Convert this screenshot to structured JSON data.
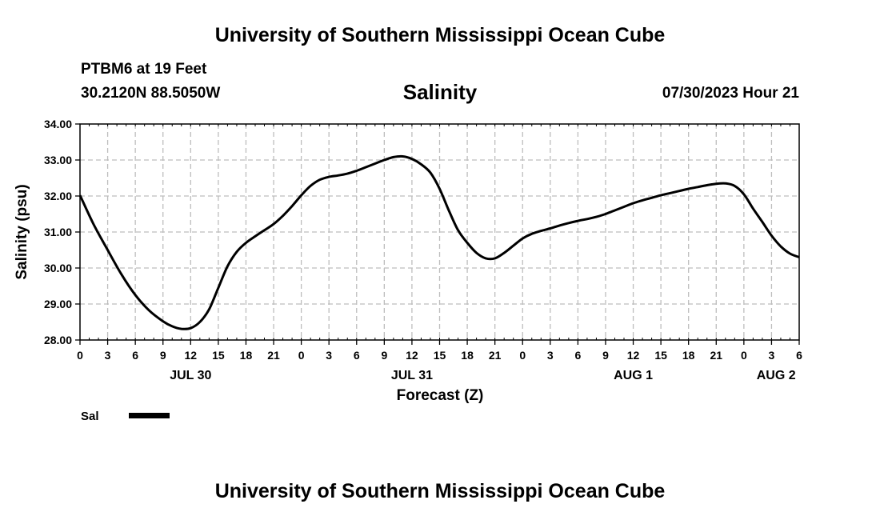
{
  "page": {
    "top_title": "University of Southern Mississippi Ocean Cube",
    "bottom_title": "University of Southern Mississippi Ocean Cube",
    "station": "PTBM6 at 19 Feet",
    "coordinates": "30.2120N  88.5050W",
    "date_hour": "07/30/2023 Hour 21"
  },
  "chart_data": {
    "type": "line",
    "title": "Salinity",
    "xlabel": "Forecast (Z)",
    "ylabel": "Salinity (psu)",
    "ylim": [
      28,
      34
    ],
    "xlim": [
      0,
      78
    ],
    "x_unit": "hours from JUL 30 00Z",
    "y_ticks": [
      "28.00",
      "29.00",
      "30.00",
      "31.00",
      "32.00",
      "33.00",
      "34.00"
    ],
    "x_ticks": [
      "0",
      "3",
      "6",
      "9",
      "12",
      "15",
      "18",
      "21",
      "0",
      "3",
      "6",
      "9",
      "12",
      "15",
      "18",
      "21",
      "0",
      "3",
      "6",
      "9",
      "12",
      "15",
      "18",
      "21",
      "0",
      "3",
      "6"
    ],
    "date_labels": [
      {
        "hour": 12,
        "label": "JUL 30"
      },
      {
        "hour": 36,
        "label": "JUL 31"
      },
      {
        "hour": 60,
        "label": "AUG 1"
      },
      {
        "hour": 75.5,
        "label": "AUG 2"
      }
    ],
    "grid": true,
    "legend": [
      {
        "name": "Sal",
        "color": "#000000"
      }
    ],
    "series": [
      {
        "name": "Sal",
        "color": "#000000",
        "x": [
          0,
          1.5,
          3,
          4.5,
          6,
          7.5,
          9,
          10,
          11,
          12,
          13,
          14,
          15,
          16,
          17,
          18,
          19,
          20,
          21,
          22,
          23,
          24,
          25,
          26,
          27,
          28,
          29,
          30,
          31,
          32,
          33,
          34,
          35,
          36,
          37,
          38,
          39,
          40,
          41,
          42,
          43,
          44,
          45,
          46,
          47,
          48,
          49,
          50,
          51,
          52,
          53,
          54,
          55,
          56,
          57,
          58,
          59,
          60,
          61,
          62,
          63,
          64,
          65,
          66,
          67,
          68,
          69,
          70,
          71,
          72,
          73,
          74,
          75,
          76,
          77,
          78
        ],
        "values": [
          32.02,
          31.2,
          30.5,
          29.82,
          29.25,
          28.82,
          28.52,
          28.38,
          28.31,
          28.33,
          28.5,
          28.85,
          29.45,
          30.05,
          30.45,
          30.7,
          30.88,
          31.05,
          31.22,
          31.45,
          31.72,
          32.02,
          32.28,
          32.45,
          32.53,
          32.57,
          32.62,
          32.7,
          32.8,
          32.9,
          33.0,
          33.08,
          33.1,
          33.03,
          32.88,
          32.65,
          32.2,
          31.6,
          31.05,
          30.7,
          30.42,
          30.27,
          30.27,
          30.42,
          30.62,
          30.82,
          30.95,
          31.03,
          31.1,
          31.18,
          31.25,
          31.31,
          31.36,
          31.42,
          31.5,
          31.6,
          31.7,
          31.8,
          31.88,
          31.95,
          32.02,
          32.08,
          32.14,
          32.2,
          32.25,
          32.3,
          32.34,
          32.35,
          32.28,
          32.05,
          31.65,
          31.28,
          30.9,
          30.6,
          30.4,
          30.3
        ]
      }
    ]
  }
}
